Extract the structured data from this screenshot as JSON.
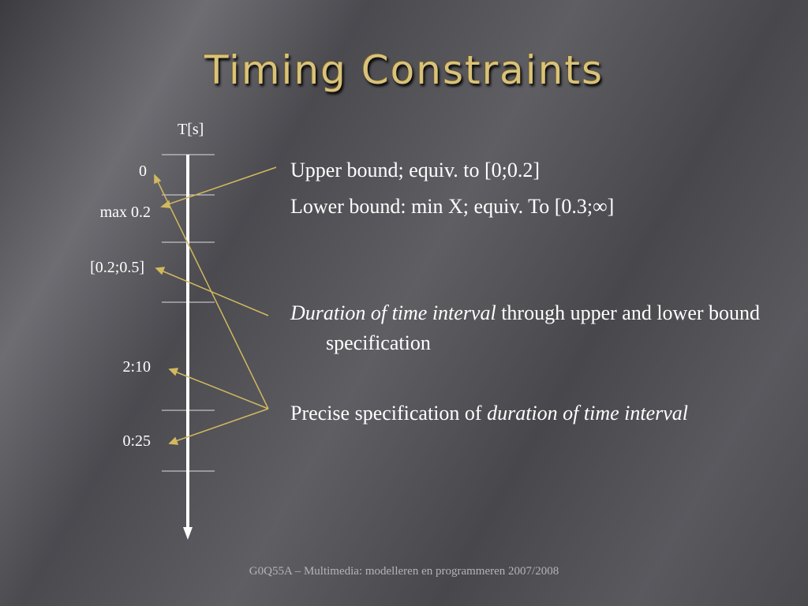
{
  "title": "Timing Constraints",
  "timeline": {
    "axis_label": "T[s]",
    "labels": [
      "0",
      "max 0.2",
      "[0.2;0.5]",
      "2:10",
      "0:25"
    ]
  },
  "bullets": [
    {
      "segments": [
        {
          "text": "Upper bound; equiv. to [0;0.2]",
          "italic": false
        }
      ]
    },
    {
      "segments": [
        {
          "text": "Lower bound: min X; equiv. To [0.3;∞]",
          "italic": false
        }
      ]
    },
    {
      "segments": [
        {
          "text": "Duration of time interval",
          "italic": true
        },
        {
          "text": " through upper and lower bound specification",
          "italic": false
        }
      ]
    },
    {
      "segments": [
        {
          "text": "Precise specification of ",
          "italic": false
        },
        {
          "text": "duration of time interval",
          "italic": true
        }
      ]
    }
  ],
  "footer": "G0Q55A – Multimedia: modelleren en programmeren 2007/2008"
}
